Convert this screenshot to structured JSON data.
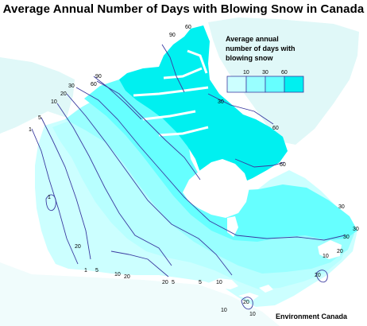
{
  "title": "Average Annual Number of Days with Blowing Snow in Canada",
  "legend": {
    "title": "Average annual number of days with blowing snow",
    "classes": [
      {
        "label": "",
        "color": "#ccffff"
      },
      {
        "label": "10",
        "color": "#99ffff"
      },
      {
        "label": "30",
        "color": "#66ffff"
      },
      {
        "label": "60",
        "color": "#00f0f0"
      }
    ]
  },
  "credit": "Environment Canada",
  "colors": {
    "land_low": "#e6ffff",
    "land_1_5": "#ccffff",
    "land_10_30": "#99ffff",
    "land_30_60": "#66ffff",
    "land_60_plus": "#00f0f0",
    "neighbor_land": "#e0f8f8",
    "water": "#ffffff",
    "isoline": "#3a3aa0"
  },
  "isoline_labels": [
    "90",
    "60",
    "30",
    "60",
    "60",
    "90",
    "60",
    "30",
    "20",
    "10",
    "5",
    "1",
    "1",
    "1",
    "5",
    "10",
    "20",
    "20",
    "5",
    "5",
    "10",
    "20",
    "10",
    "30",
    "30",
    "30",
    "20",
    "20",
    "10",
    "10",
    "20"
  ]
}
